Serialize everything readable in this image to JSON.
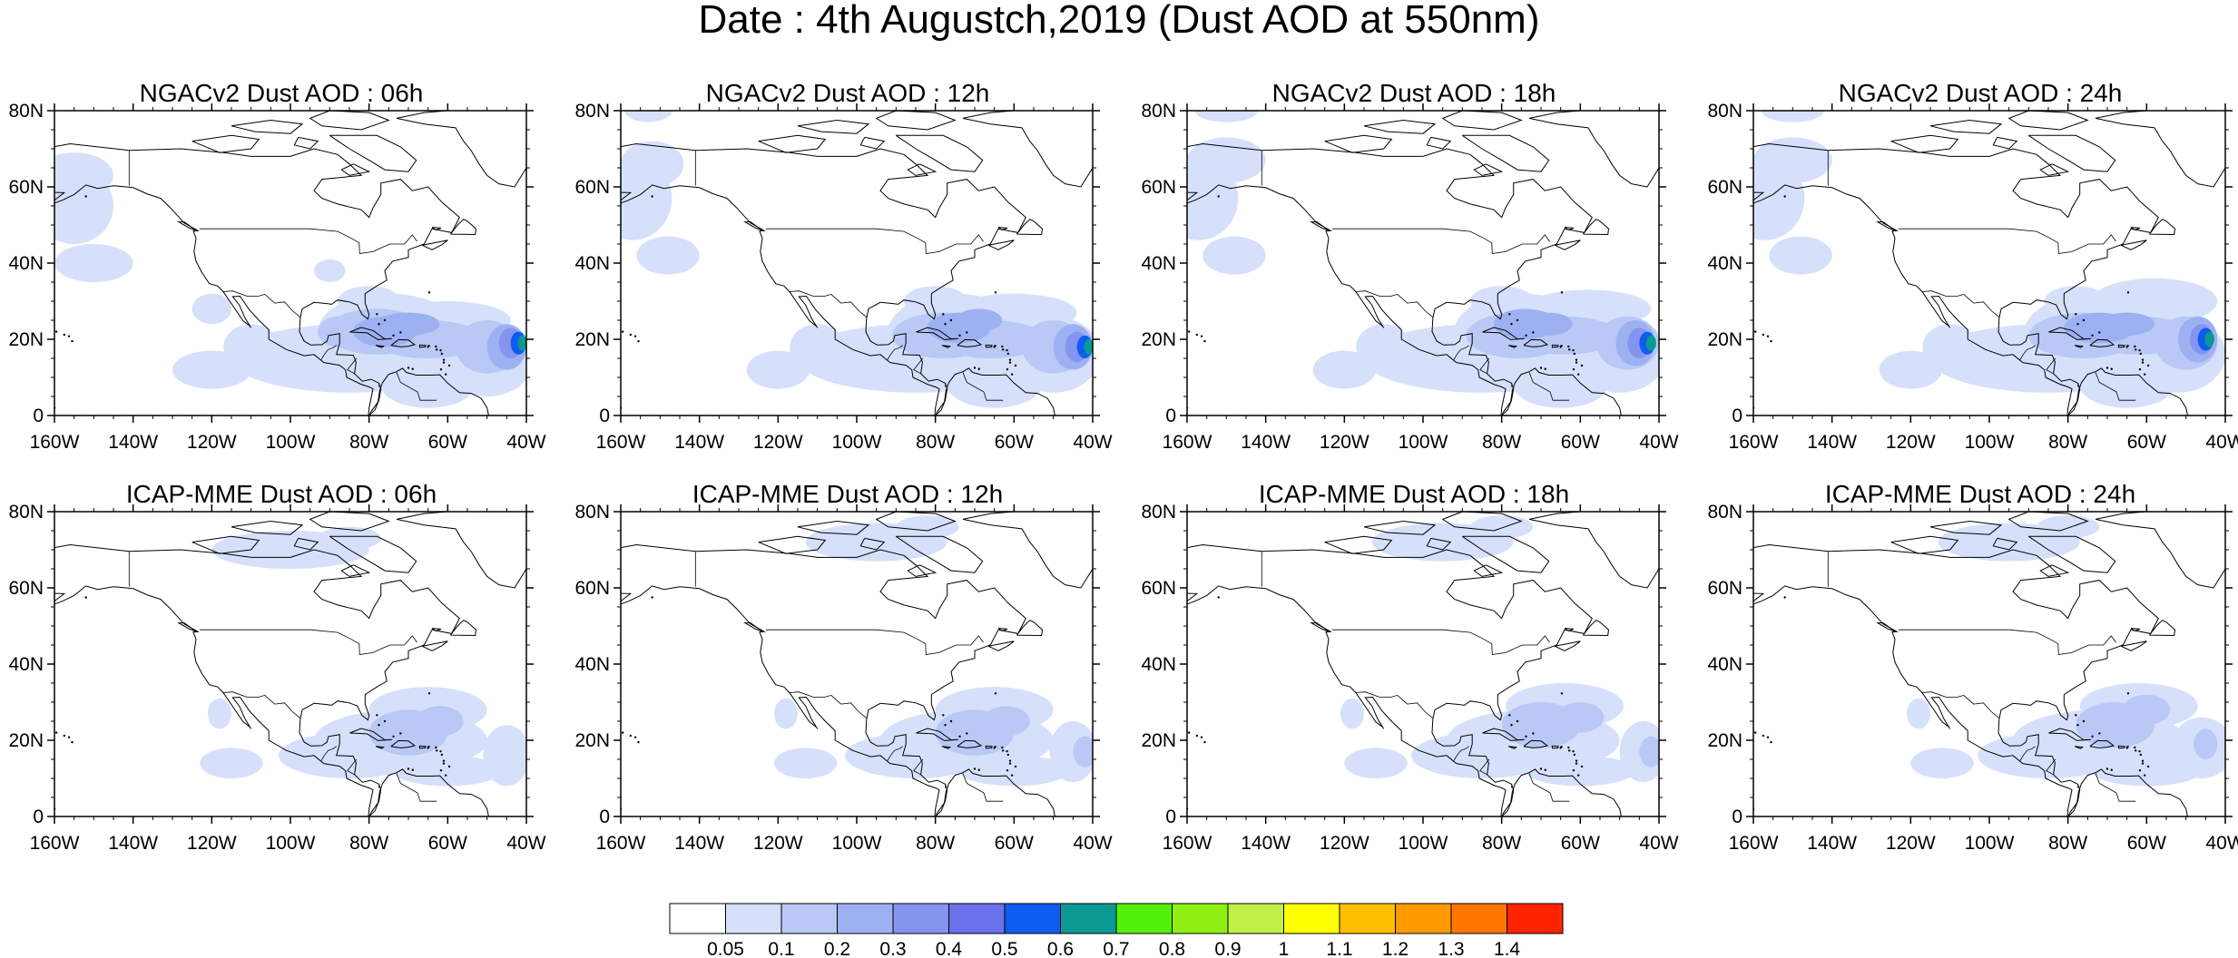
{
  "title": "Date : 4th Augustch,2019 (Dust AOD at 550nm)",
  "axes": {
    "lat_labels": [
      "0",
      "20N",
      "40N",
      "60N",
      "80N"
    ],
    "lon_labels": [
      "160W",
      "140W",
      "120W",
      "100W",
      "80W",
      "60W",
      "40W"
    ],
    "lat_range": [
      0,
      80
    ],
    "lon_range": [
      -160,
      -40
    ]
  },
  "panels": [
    {
      "title": "NGACv2 Dust AOD : 06h",
      "model": "ngac",
      "lead": "06h"
    },
    {
      "title": "NGACv2 Dust AOD : 12h",
      "model": "ngac",
      "lead": "12h"
    },
    {
      "title": "NGACv2 Dust AOD : 18h",
      "model": "ngac",
      "lead": "18h"
    },
    {
      "title": "NGACv2 Dust AOD : 24h",
      "model": "ngac",
      "lead": "24h"
    },
    {
      "title": "ICAP-MME Dust AOD : 06h",
      "model": "icap",
      "lead": "06h"
    },
    {
      "title": "ICAP-MME Dust AOD : 12h",
      "model": "icap",
      "lead": "12h"
    },
    {
      "title": "ICAP-MME Dust AOD : 18h",
      "model": "icap",
      "lead": "18h"
    },
    {
      "title": "ICAP-MME Dust AOD : 24h",
      "model": "icap",
      "lead": "24h"
    }
  ],
  "colorbar": {
    "labels": [
      "0.05",
      "0.1",
      "0.2",
      "0.3",
      "0.4",
      "0.5",
      "0.6",
      "0.7",
      "0.8",
      "0.9",
      "1",
      "1.1",
      "1.2",
      "1.3",
      "1.4"
    ],
    "colors": [
      "#ffffff",
      "#d6e0fa",
      "#b9c8f5",
      "#9db1f2",
      "#8595ef",
      "#6a72ea",
      "#0f5cf0",
      "#0a9a93",
      "#52f00b",
      "#90ef12",
      "#c0f048",
      "#ffff00",
      "#ffbf00",
      "#ff9a00",
      "#ff7600",
      "#ff2400"
    ]
  }
}
